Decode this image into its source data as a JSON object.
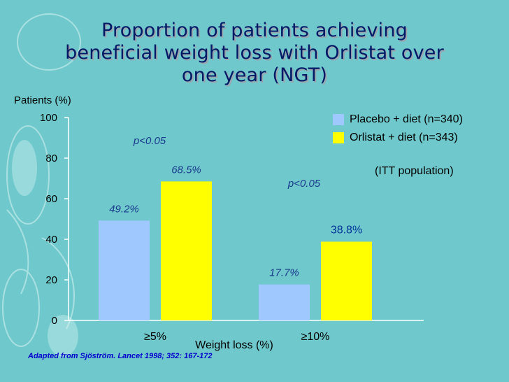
{
  "title": {
    "line1": "Proportion of patients  achieving",
    "line2": "beneficial weight loss with Orlistat over",
    "line3": "one year (NGT)"
  },
  "legend": {
    "placebo": "Placebo + diet (n=340)",
    "orlistat": "Orlistat + diet (n=343)"
  },
  "note": "(ITT population)",
  "source": "Adapted from Sjöström. Lancet 1998; 352: 167-172",
  "colors": {
    "placebo": "#9ec8ff",
    "orlistat": "#ffff00",
    "title": "#001a66",
    "italic_label": "#1a3a8c"
  },
  "chart_data": {
    "type": "bar",
    "title": "Proportion of patients achieving beneficial weight loss with Orlistat over one year (NGT)",
    "xlabel": "Weight loss (%)",
    "ylabel": "Patients (%)",
    "ylim": [
      0,
      100
    ],
    "yticks": [
      0,
      20,
      40,
      60,
      80,
      100
    ],
    "categories": [
      "≥5%",
      "≥10%"
    ],
    "series": [
      {
        "name": "Placebo + diet (n=340)",
        "values": [
          49.2,
          17.7
        ],
        "labels": [
          "49.2%",
          "17.7%"
        ],
        "color": "#9ec8ff"
      },
      {
        "name": "Orlistat + diet (n=343)",
        "values": [
          68.5,
          38.8
        ],
        "labels": [
          "68.5%",
          "38.8%"
        ],
        "color": "#ffff00"
      }
    ],
    "significance": [
      "p<0.05",
      "p<0.05"
    ]
  }
}
